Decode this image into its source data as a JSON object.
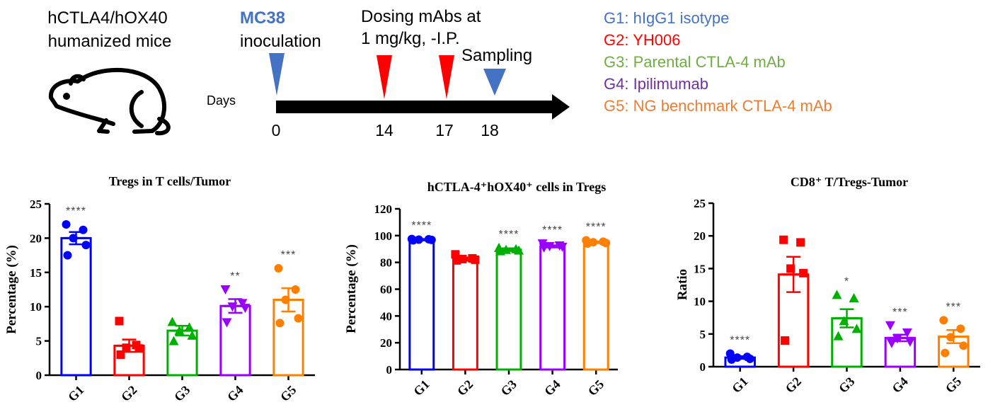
{
  "header": {
    "mouse_label_line1": "hCTLA4/hOX40",
    "mouse_label_line2": "humanized mice",
    "inoculation_bold": "MC38",
    "inoculation_text": "inoculation",
    "dosing_line1": "Dosing mAbs at",
    "dosing_line2": "1 mg/kg, -I.P.",
    "sampling_label": "Sampling",
    "days_label": "Days",
    "timeline_days": [
      "0",
      "14",
      "17",
      "18"
    ],
    "colors": {
      "inoculation": "#4472c4",
      "dosing": "#ff0000",
      "sampling": "#4472c4"
    }
  },
  "legend": [
    {
      "group": "G1",
      "label": "hIgG1 isotype",
      "color": "#4472c4"
    },
    {
      "group": "G2",
      "label": "YH006",
      "color": "#ff0000"
    },
    {
      "group": "G3",
      "label": "Parental CTLA-4 mAb",
      "color": "#70ad47"
    },
    {
      "group": "G4",
      "label": "Ipilimumab",
      "color": "#7030a0"
    },
    {
      "group": "G5",
      "label": "NG benchmark CTLA-4 mAb",
      "color": "#ed7d31"
    }
  ],
  "chart_data": [
    {
      "type": "bar",
      "title": "Tregs in T cells/Tumor",
      "ylabel": "Percentage (%)",
      "categories": [
        "G1",
        "G2",
        "G3",
        "G4",
        "G5"
      ],
      "ylim": [
        0,
        25
      ],
      "yticks": [
        0,
        5,
        10,
        15,
        20,
        25
      ],
      "ytick_labels": [
        "0",
        "5",
        "10",
        "15",
        "20",
        "25"
      ],
      "values": [
        20.0,
        4.3,
        6.5,
        10.1,
        11.0
      ],
      "sem": [
        0.9,
        0.9,
        0.7,
        1.0,
        1.7
      ],
      "points": [
        [
          22.0,
          21.2,
          20.0,
          19.0,
          17.5
        ],
        [
          7.9,
          4.4,
          4.0,
          3.9,
          3.0
        ],
        [
          7.8,
          7.0,
          6.5,
          5.8,
          5.0
        ],
        [
          12.5,
          10.5,
          10.0,
          9.8,
          7.7
        ],
        [
          15.6,
          12.5,
          11.0,
          8.3,
          7.6
        ]
      ],
      "markers": [
        "circle",
        "square",
        "triangle",
        "triangle-down",
        "circle"
      ],
      "significance": [
        "****",
        "",
        "",
        "**",
        "***"
      ],
      "colors": [
        "#0000ff",
        "#ff0000",
        "#00b000",
        "#9900ff",
        "#ff8000"
      ]
    },
    {
      "type": "bar",
      "title": "hCTLA-4⁺hOX40⁺ cells in Tregs",
      "ylabel": "Percentage (%)",
      "categories": [
        "G1",
        "G2",
        "G3",
        "G4",
        "G5"
      ],
      "ylim": [
        0,
        120
      ],
      "yticks": [
        0,
        20,
        40,
        60,
        80,
        100,
        120
      ],
      "ytick_labels": [
        "0",
        "20",
        "40",
        "60",
        "80",
        "100",
        "120"
      ],
      "values": [
        97.0,
        82.5,
        89.5,
        92.0,
        95.0
      ],
      "sem": [
        0.5,
        1.2,
        1.0,
        0.8,
        0.6
      ],
      "points": [
        [
          97.5,
          97.3,
          97.0,
          96.8,
          96.5
        ],
        [
          86.0,
          83.0,
          82.5,
          82.0,
          81.5
        ],
        [
          91.0,
          90.0,
          89.5,
          89.0,
          88.5
        ],
        [
          94.0,
          92.5,
          92.0,
          91.5,
          91.0
        ],
        [
          96.5,
          95.5,
          95.0,
          94.5,
          94.0
        ]
      ],
      "markers": [
        "circle",
        "square",
        "triangle",
        "triangle-down",
        "circle"
      ],
      "significance": [
        "****",
        "",
        "****",
        "****",
        "****"
      ],
      "colors": [
        "#0000ff",
        "#ff0000",
        "#00b000",
        "#9900ff",
        "#ff8000"
      ]
    },
    {
      "type": "bar",
      "title": "CD8⁺ T/Tregs-Tumor",
      "ylabel": "Ratio",
      "categories": [
        "G1",
        "G2",
        "G3",
        "G4",
        "G5"
      ],
      "ylim": [
        0,
        25
      ],
      "yticks": [
        0,
        5,
        10,
        15,
        20,
        25
      ],
      "ytick_labels": [
        "0",
        "5",
        "10",
        "15",
        "20",
        "25"
      ],
      "values": [
        1.4,
        14.1,
        7.4,
        4.4,
        4.6
      ],
      "sem": [
        0.2,
        2.7,
        1.4,
        0.5,
        1.0
      ],
      "points": [
        [
          2.0,
          1.5,
          1.4,
          1.2,
          1.1
        ],
        [
          19.4,
          19.0,
          15.0,
          14.3,
          4.0
        ],
        [
          11.0,
          10.5,
          7.0,
          5.8,
          4.7
        ],
        [
          6.3,
          5.2,
          4.3,
          3.8,
          3.6
        ],
        [
          7.1,
          5.8,
          4.5,
          3.2,
          2.1
        ]
      ],
      "markers": [
        "circle",
        "square",
        "triangle",
        "triangle-down",
        "circle"
      ],
      "significance": [
        "****",
        "",
        "*",
        "***",
        "***"
      ],
      "colors": [
        "#0000ff",
        "#ff0000",
        "#00b000",
        "#9900ff",
        "#ff8000"
      ]
    }
  ]
}
